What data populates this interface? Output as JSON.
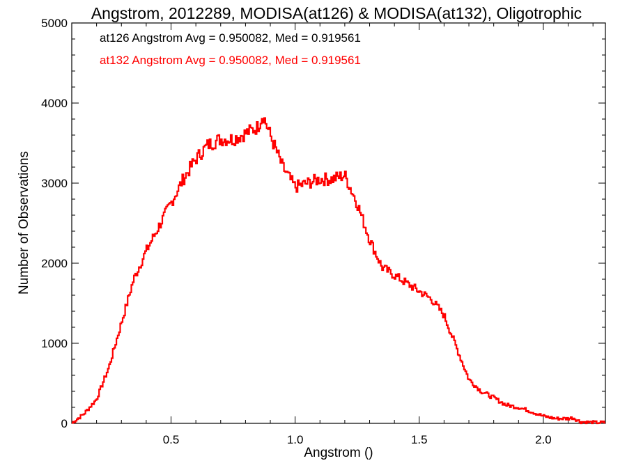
{
  "chart_data": {
    "type": "line",
    "style": "step-histogram",
    "title": "Angstrom, 2012289, MODISA(at126) & MODISA(at132), Oligotrophic",
    "xlabel": "Angstrom ()",
    "ylabel": "Number of Observations",
    "xlim": [
      0.1,
      2.25
    ],
    "ylim": [
      0,
      5000
    ],
    "x_ticks": [
      0.5,
      1.0,
      1.5,
      2.0
    ],
    "x_tick_labels": [
      "0.5",
      "1.0",
      "1.5",
      "2.0"
    ],
    "y_ticks": [
      0,
      1000,
      2000,
      3000,
      4000,
      5000
    ],
    "y_tick_labels": [
      "0",
      "1000",
      "2000",
      "3000",
      "4000",
      "5000"
    ],
    "grid": false,
    "annotations": [
      {
        "text": "at126 Angstrom Avg = 0.950082, Med = 0.919561",
        "color": "#000000"
      },
      {
        "text": "at132 Angstrom Avg = 0.950082, Med = 0.919561",
        "color": "#ff0000"
      }
    ],
    "series": [
      {
        "color": "#ff0000",
        "x": [
          0.1,
          0.15,
          0.2,
          0.25,
          0.3,
          0.35,
          0.4,
          0.45,
          0.5,
          0.55,
          0.6,
          0.65,
          0.7,
          0.75,
          0.8,
          0.85,
          0.87,
          0.9,
          0.95,
          1.0,
          1.05,
          1.1,
          1.15,
          1.2,
          1.25,
          1.3,
          1.35,
          1.4,
          1.45,
          1.5,
          1.55,
          1.6,
          1.65,
          1.7,
          1.75,
          1.8,
          1.85,
          1.9,
          1.95,
          2.0,
          2.05,
          2.1,
          2.12,
          2.15,
          2.2,
          2.25
        ],
        "values": [
          0,
          120,
          300,
          700,
          1250,
          1800,
          2150,
          2450,
          2750,
          3050,
          3300,
          3480,
          3550,
          3550,
          3620,
          3700,
          3860,
          3600,
          3200,
          2950,
          3000,
          3050,
          3050,
          3100,
          2750,
          2300,
          1950,
          1850,
          1750,
          1650,
          1550,
          1350,
          950,
          550,
          400,
          320,
          230,
          200,
          150,
          90,
          60,
          60,
          70,
          20,
          10,
          10
        ]
      }
    ]
  }
}
